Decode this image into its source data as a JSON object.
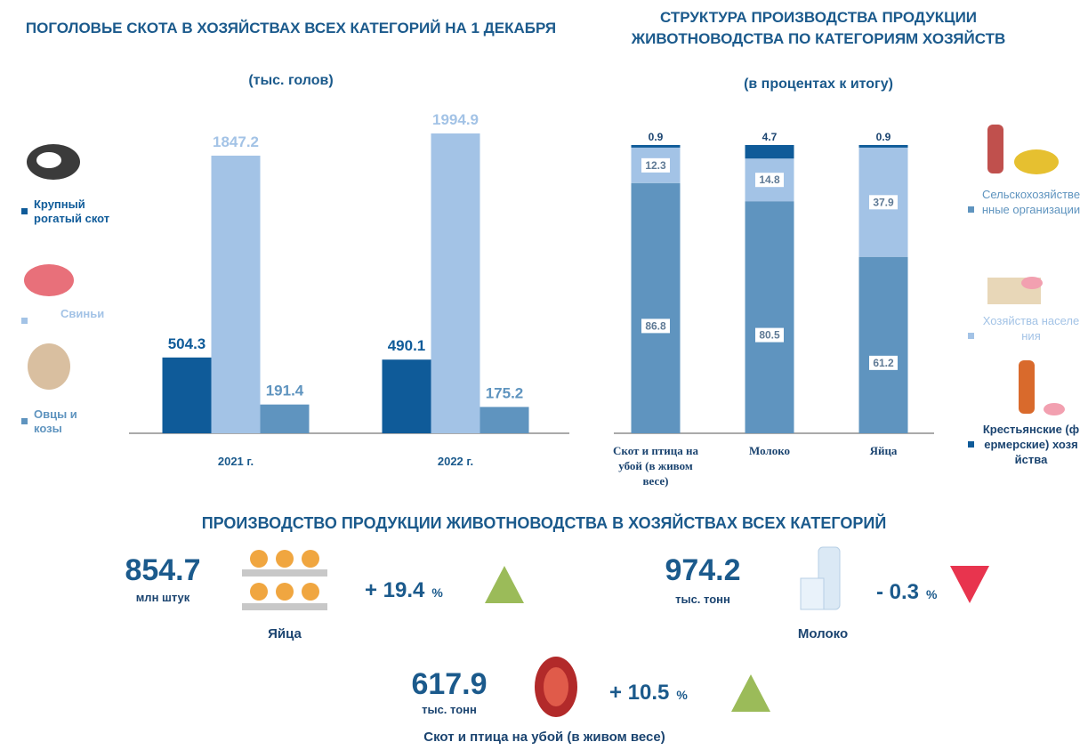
{
  "chart_data": [
    {
      "type": "bar",
      "title": "ПОГОЛОВЬЕ СКОТА В ХОЗЯЙСТВАХ ВСЕХ КАТЕГОРИЙ НА 1 ДЕКАБРЯ",
      "subtitle": "(тыс. голов)",
      "categories": [
        "2021 г.",
        "2022 г."
      ],
      "series": [
        {
          "name": "Крупный рогатый скот",
          "color": "#0f5b99",
          "values": [
            504.3,
            490.1
          ]
        },
        {
          "name": "Свиньи",
          "color": "#a3c3e6",
          "values": [
            1847.2,
            1994.9
          ]
        },
        {
          "name": "Овцы и козы",
          "color": "#5f94bf",
          "values": [
            191.4,
            175.2
          ]
        }
      ]
    },
    {
      "type": "stacked_bar",
      "title": "СТРУКТУРА ПРОИЗВОДСТВА ПРОДУКЦИИ ЖИВОТНОВОДСТВА ПО КАТЕГОРИЯМ ХОЗЯЙСТВ",
      "subtitle": "(в процентах к итогу)",
      "categories": [
        "Скот и птица на убой (в живом весе)",
        "Молоко",
        "Яйца"
      ],
      "series": [
        {
          "name": "Сельскохозяйственные организации",
          "color": "#5f94bf",
          "values": [
            86.8,
            80.5,
            61.2
          ]
        },
        {
          "name": "Хозяйства населения",
          "color": "#a3c3e6",
          "values": [
            12.3,
            14.8,
            37.9
          ]
        },
        {
          "name": "Крестьянские (фермерские) хозяйства",
          "color": "#0f5b99",
          "values": [
            0.9,
            4.7,
            0.9
          ]
        }
      ]
    }
  ],
  "production": {
    "title": "ПРОИЗВОДСТВО ПРОДУКЦИИ ЖИВОТНОВОДСТВА В ХОЗЯЙСТВАХ ВСЕХ КАТЕГОРИЙ",
    "items": [
      {
        "value": 854.7,
        "unit": "млн штук",
        "name": "Яйца",
        "change": "+ 19.4",
        "change_unit": "%",
        "trend": "up"
      },
      {
        "value": 974.2,
        "unit": "тыс. тонн",
        "name": "Молоко",
        "change": "- 0.3",
        "change_unit": "%",
        "trend": "down"
      },
      {
        "value": 617.9,
        "unit": "тыс. тонн",
        "name": "Скот и птица на убой (в живом весе)",
        "change": "+ 10.5",
        "change_unit": "%",
        "trend": "up"
      }
    ]
  }
}
